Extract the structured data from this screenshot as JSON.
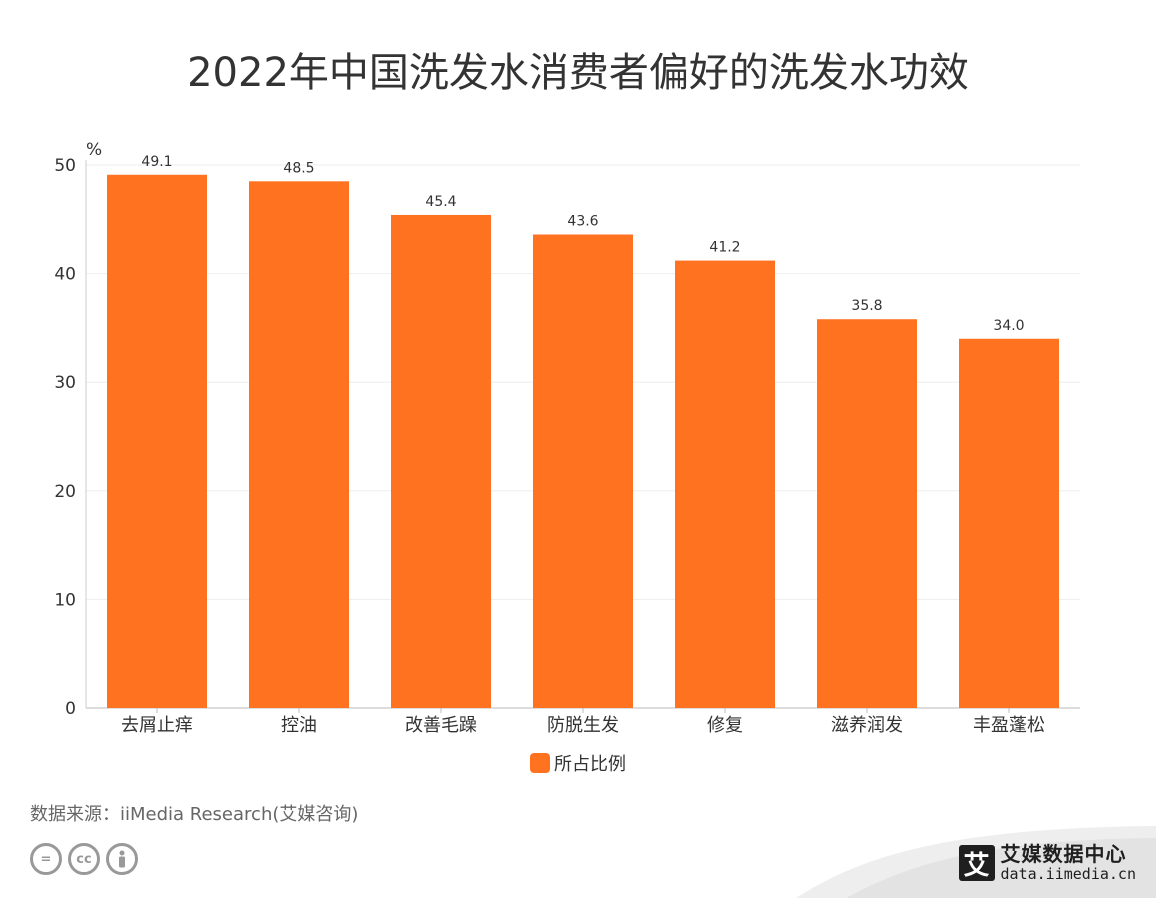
{
  "title": "2022年中国洗发水消费者偏好的洗发水功效",
  "chart_data": {
    "type": "bar",
    "unit": "%",
    "categories": [
      "去屑止痒",
      "控油",
      "改善毛躁",
      "防脱生发",
      "修复",
      "滋养润发",
      "丰盈蓬松"
    ],
    "series": [
      {
        "name": "所占比例",
        "values": [
          49.1,
          48.5,
          45.4,
          43.6,
          41.2,
          35.8,
          34.0
        ],
        "color": "#FF7220"
      }
    ],
    "ylim": [
      0,
      50
    ],
    "yticks": [
      0,
      10,
      20,
      30,
      40,
      50
    ],
    "grid": true,
    "legend": "bottom-center"
  },
  "source": "数据来源：iiMedia Research(艾媒咨询)",
  "license_icons": [
    "equal-icon",
    "cc-icon",
    "person-icon"
  ],
  "license_labels": [
    "=",
    "cc"
  ],
  "brand": {
    "logo_char": "艾",
    "name": "艾媒数据中心",
    "url": "data.iimedia.cn"
  }
}
